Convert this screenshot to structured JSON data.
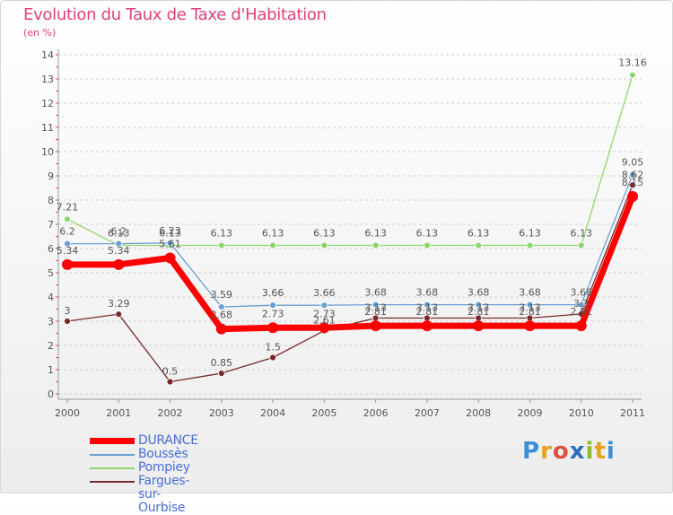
{
  "title": "Evolution du Taux de Taxe d'Habitation",
  "subtitle": "(en %)",
  "brand": "Proxiti",
  "chart_data": {
    "type": "line",
    "title": "Evolution du Taux de Taxe d'Habitation",
    "subtitle": "(en %)",
    "xlabel": "",
    "ylabel": "",
    "x": [
      "2000",
      "2001",
      "2002",
      "2003",
      "2004",
      "2005",
      "2006",
      "2007",
      "2008",
      "2009",
      "2010",
      "2011"
    ],
    "ylim": [
      0,
      14
    ],
    "yticks": [
      0,
      1,
      2,
      3,
      4,
      5,
      6,
      7,
      8,
      9,
      10,
      11,
      12,
      13,
      14
    ],
    "grid": "horizontal dashed",
    "legend": "bottom-left",
    "series": [
      {
        "name": "DURANCE",
        "color": "#ff0000",
        "values": [
          5.34,
          5.34,
          5.61,
          2.68,
          2.73,
          2.73,
          2.81,
          2.81,
          2.81,
          2.81,
          2.81,
          8.15
        ],
        "labels": [
          "5.34",
          "5.34",
          "5.61",
          "2.68",
          "2.73",
          "2.73",
          "2.81",
          "2.81",
          "2.81",
          "2.81",
          "2.81",
          "8.15"
        ]
      },
      {
        "name": "Boussès",
        "color": "#6aa0d6",
        "values": [
          6.2,
          6.2,
          6.23,
          3.59,
          3.66,
          3.66,
          3.68,
          3.68,
          3.68,
          3.68,
          3.68,
          9.05
        ],
        "labels": [
          "6.2",
          "6.2",
          "6.23",
          "3.59",
          "3.66",
          "3.66",
          "3.68",
          "3.68",
          "3.68",
          "3.68",
          "3.68",
          "9.05"
        ]
      },
      {
        "name": "Pompiey",
        "color": "#8fd66a",
        "values": [
          7.21,
          6.13,
          6.13,
          6.13,
          6.13,
          6.13,
          6.13,
          6.13,
          6.13,
          6.13,
          6.13,
          13.16
        ],
        "labels": [
          "7.21",
          "6.13",
          "6.13",
          "6.13",
          "6.13",
          "6.13",
          "6.13",
          "6.13",
          "6.13",
          "6.13",
          "6.13",
          "13.16"
        ]
      },
      {
        "name": "Fargues-sur-Ourbise",
        "color": "#7a2a2a",
        "values": [
          3,
          3.29,
          0.5,
          0.85,
          1.5,
          2.61,
          3.13,
          3.13,
          3.13,
          3.13,
          3.3,
          8.62
        ],
        "labels": [
          "3",
          "3.29",
          "0.5",
          "0.85",
          "1.5",
          "2.61",
          "3.13",
          "3.13",
          "3.13",
          "3.13",
          "3.3",
          "8.62"
        ]
      }
    ]
  }
}
